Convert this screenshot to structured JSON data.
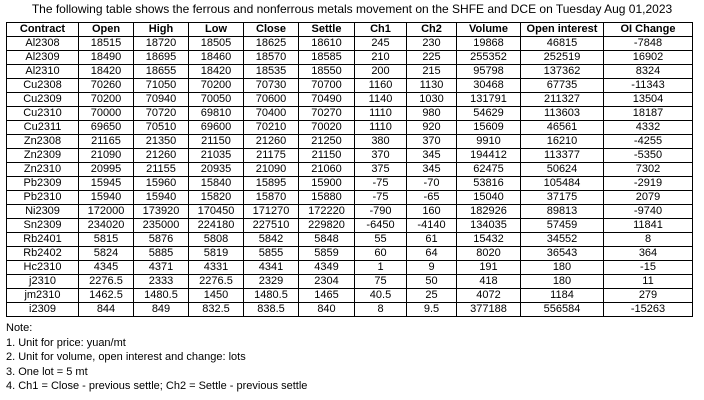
{
  "title": "The following table shows the ferrous and nonferrous metals movement on the SHFE and DCE on Tuesday Aug 01,2023",
  "table": {
    "headers": [
      "Contract",
      "Open",
      "High",
      "Low",
      "Close",
      "Settle",
      "Ch1",
      "Ch2",
      "Volume",
      "Open interest",
      "OI Change"
    ],
    "rows": [
      [
        "Al2308",
        "18515",
        "18720",
        "18505",
        "18625",
        "18610",
        "245",
        "230",
        "19868",
        "46815",
        "-7848"
      ],
      [
        "Al2309",
        "18490",
        "18695",
        "18460",
        "18570",
        "18585",
        "210",
        "225",
        "255352",
        "252519",
        "16902"
      ],
      [
        "Al2310",
        "18420",
        "18655",
        "18420",
        "18535",
        "18550",
        "200",
        "215",
        "95798",
        "137362",
        "8324"
      ],
      [
        "Cu2308",
        "70260",
        "71050",
        "70200",
        "70730",
        "70700",
        "1160",
        "1130",
        "30468",
        "67735",
        "-11343"
      ],
      [
        "Cu2309",
        "70200",
        "70940",
        "70050",
        "70600",
        "70490",
        "1140",
        "1030",
        "131791",
        "211327",
        "13504"
      ],
      [
        "Cu2310",
        "70000",
        "70720",
        "69810",
        "70400",
        "70270",
        "1110",
        "980",
        "54629",
        "113603",
        "18187"
      ],
      [
        "Cu2311",
        "69650",
        "70510",
        "69600",
        "70210",
        "70020",
        "1110",
        "920",
        "15609",
        "46561",
        "4332"
      ],
      [
        "Zn2308",
        "21165",
        "21350",
        "21150",
        "21260",
        "21250",
        "380",
        "370",
        "9910",
        "16210",
        "-4255"
      ],
      [
        "Zn2309",
        "21090",
        "21260",
        "21035",
        "21175",
        "21150",
        "370",
        "345",
        "194412",
        "113377",
        "-5350"
      ],
      [
        "Zn2310",
        "20995",
        "21155",
        "20935",
        "21090",
        "21060",
        "375",
        "345",
        "62475",
        "50624",
        "7302"
      ],
      [
        "Pb2309",
        "15945",
        "15960",
        "15840",
        "15895",
        "15900",
        "-75",
        "-70",
        "53816",
        "105484",
        "-2919"
      ],
      [
        "Pb2310",
        "15940",
        "15940",
        "15820",
        "15870",
        "15880",
        "-75",
        "-65",
        "15040",
        "37175",
        "2079"
      ],
      [
        "Ni2309",
        "172000",
        "173920",
        "170450",
        "171270",
        "172220",
        "-790",
        "160",
        "182926",
        "89813",
        "-9740"
      ],
      [
        "Sn2309",
        "234020",
        "235000",
        "224180",
        "227510",
        "229820",
        "-6450",
        "-4140",
        "134035",
        "57459",
        "11841"
      ],
      [
        "Rb2401",
        "5815",
        "5876",
        "5808",
        "5842",
        "5848",
        "55",
        "61",
        "15432",
        "34552",
        "8"
      ],
      [
        "Rb2402",
        "5824",
        "5885",
        "5819",
        "5855",
        "5859",
        "60",
        "64",
        "8020",
        "36543",
        "364"
      ],
      [
        "Hc2310",
        "4345",
        "4371",
        "4331",
        "4341",
        "4349",
        "1",
        "9",
        "191",
        "180",
        "-15"
      ],
      [
        "j2310",
        "2276.5",
        "2333",
        "2276.5",
        "2329",
        "2304",
        "75",
        "50",
        "418",
        "180",
        "11"
      ],
      [
        "jm2310",
        "1462.5",
        "1480.5",
        "1450",
        "1480.5",
        "1465",
        "40.5",
        "25",
        "4072",
        "1184",
        "279"
      ],
      [
        "i2309",
        "844",
        "849",
        "832.5",
        "838.5",
        "840",
        "8",
        "9.5",
        "377188",
        "556584",
        "-15263"
      ]
    ]
  },
  "notes": [
    "Note:",
    "1. Unit for price: yuan/mt",
    "2. Unit for volume, open interest and change: lots",
    "3. One lot = 5 mt",
    "4. Ch1 = Close - previous settle; Ch2 = Settle - previous settle"
  ]
}
